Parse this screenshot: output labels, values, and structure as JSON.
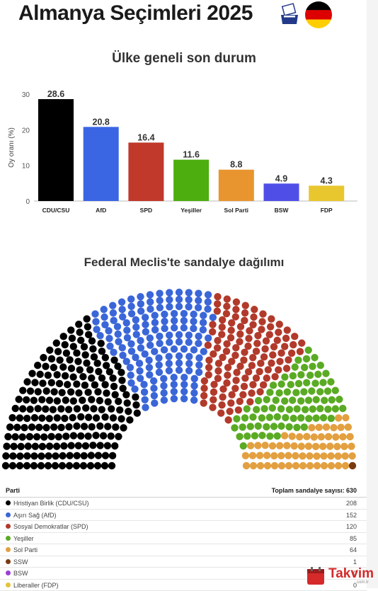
{
  "header": {
    "title": "Almanya Seçimleri 2025"
  },
  "bar_section": {
    "title": "Ülke geneli son durum"
  },
  "seat_section": {
    "title": "Federal Meclis'te sandalye dağılımı"
  },
  "chart_data": [
    {
      "type": "bar",
      "title": "Ülke geneli son durum",
      "ylabel": "Oy oranı (%)",
      "xlabel": "",
      "ylim": [
        0,
        30
      ],
      "yticks": [
        0,
        10,
        20,
        30
      ],
      "grid": false,
      "categories": [
        "CDU/CSU",
        "AfD",
        "SPD",
        "Yeşiller",
        "Sol Parti",
        "BSW",
        "FDP"
      ],
      "values": [
        28.6,
        20.8,
        16.4,
        11.6,
        8.8,
        4.9,
        4.3
      ],
      "colors": [
        "#000000",
        "#3a66e4",
        "#c0392b",
        "#4caf0f",
        "#e8952f",
        "#4f4fe8",
        "#e8c62e"
      ]
    },
    {
      "type": "hemicycle",
      "title": "Federal Meclis'te sandalye dağılımı",
      "total_seats": 630,
      "series": [
        {
          "name": "Hristiyan Birlik (CDU/CSU)",
          "value": 208,
          "color": "#000000"
        },
        {
          "name": "Aşırı Sağ (AfD)",
          "value": 152,
          "color": "#3a66d8"
        },
        {
          "name": "Sosyal Demokratlar (SPD)",
          "value": 120,
          "color": "#b23a2b"
        },
        {
          "name": "Yeşiller",
          "value": 85,
          "color": "#5aab23"
        },
        {
          "name": "Sol Parti",
          "value": 64,
          "color": "#e3a040"
        },
        {
          "name": "SSW",
          "value": 1,
          "color": "#7a3a10"
        },
        {
          "name": "BSW",
          "value": 0,
          "color": "#9b3ed6"
        },
        {
          "name": "Liberaller (FDP)",
          "value": 0,
          "color": "#e3c43a"
        }
      ]
    }
  ],
  "table": {
    "header_left": "Parti",
    "header_right": "Toplam sandalye sayısı: 630",
    "rows": [
      {
        "name": "Hristiyan Birlik (CDU/CSU)",
        "seats": "208",
        "color": "#000000"
      },
      {
        "name": "Aşırı Sağ (AfD)",
        "seats": "152",
        "color": "#3a66d8"
      },
      {
        "name": "Sosyal Demokratlar (SPD)",
        "seats": "120",
        "color": "#b23a2b"
      },
      {
        "name": "Yeşiller",
        "seats": "85",
        "color": "#5aab23"
      },
      {
        "name": "Sol Parti",
        "seats": "64",
        "color": "#e3a040"
      },
      {
        "name": "SSW",
        "seats": "1",
        "color": "#7a3a10"
      },
      {
        "name": "BSW",
        "seats": "0",
        "color": "#9b3ed6"
      },
      {
        "name": "Liberaller (FDP)",
        "seats": "0",
        "color": "#e3c43a"
      }
    ]
  },
  "watermark": {
    "brand": "Takvim",
    "sub": "com.tr"
  }
}
